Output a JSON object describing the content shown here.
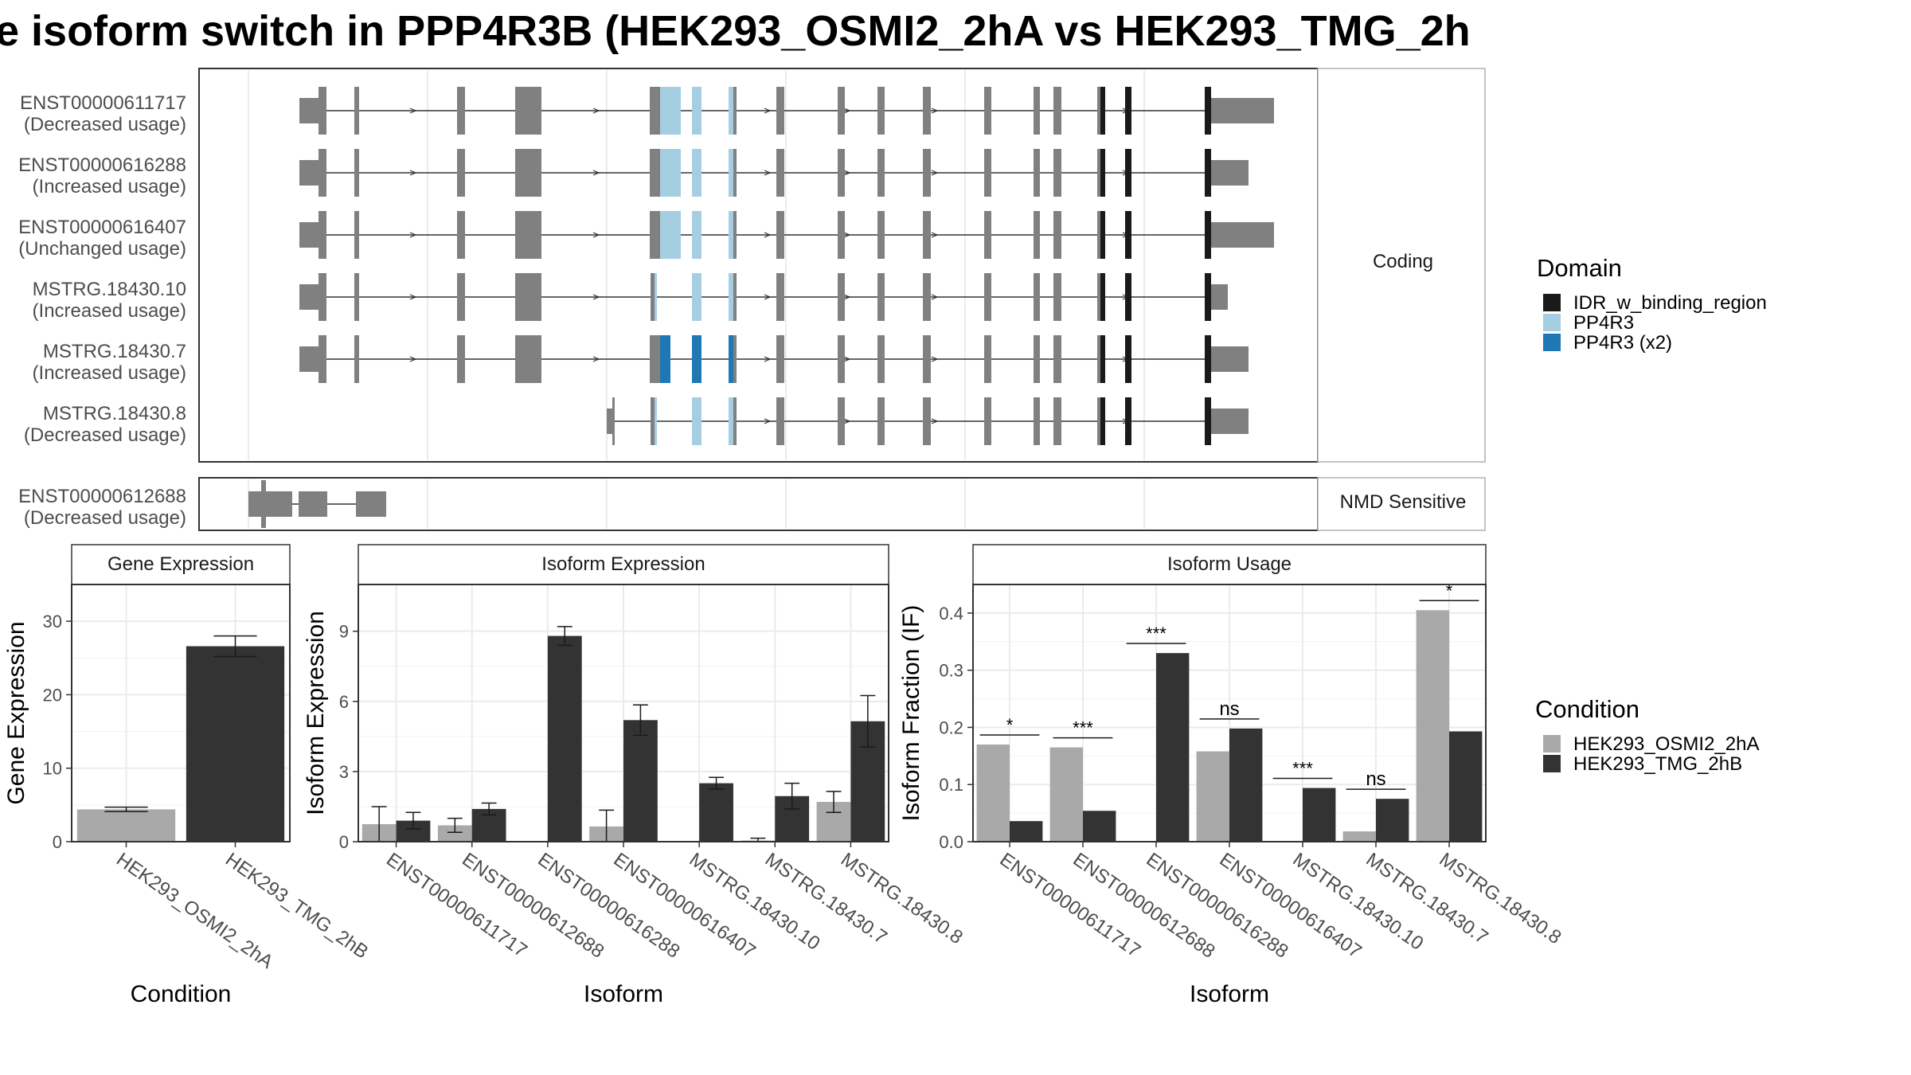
{
  "title": "e isoform switch in PPP4R3B (HEK293_OSMI2_2hA vs HEK293_TMG_2h",
  "colors": {
    "IDR_w_binding_region": "#1a1a1a",
    "PP4R3": "#a6cee3",
    "PP4R3 (x2)": "#1f78b4",
    "HEK293_OSMI2_2hA": "#a9a9a9",
    "HEK293_TMG_2hB": "#333333",
    "exon": "#808080"
  },
  "structure": {
    "coding_label": "Coding",
    "nmd_label": "NMD Sensitive",
    "coding_isoforms": [
      {
        "id": "ENST00000611717",
        "usage": "(Decreased usage)",
        "start": 1,
        "utr3_end": 16,
        "pp4r3_first": true,
        "x2": false
      },
      {
        "id": "ENST00000616288",
        "usage": "(Increased usage)",
        "start": 1,
        "utr3_end": 12,
        "pp4r3_first": true,
        "x2": false
      },
      {
        "id": "ENST00000616407",
        "usage": "(Unchanged usage)",
        "start": 1,
        "utr3_end": 16,
        "pp4r3_first": true,
        "x2": false
      },
      {
        "id": "MSTRG.18430.10",
        "usage": "(Increased usage)",
        "start": 1,
        "utr3_end": 4,
        "pp4r3_first": false,
        "x2": false
      },
      {
        "id": "MSTRG.18430.7",
        "usage": "(Increased usage)",
        "start": 1,
        "utr3_end": 12,
        "pp4r3_first": true,
        "x2": true
      },
      {
        "id": "MSTRG.18430.8",
        "usage": "(Decreased usage)",
        "start": 8,
        "utr3_end": 12,
        "pp4r3_first": false,
        "x2": false
      }
    ],
    "nmd_isoforms": [
      {
        "id": "ENST00000612688",
        "usage": "(Decreased usage)"
      }
    ]
  },
  "legend_domain": {
    "title": "Domain",
    "items": [
      "IDR_w_binding_region",
      "PP4R3",
      "PP4R3 (x2)"
    ]
  },
  "legend_condition": {
    "title": "Condition",
    "items": [
      "HEK293_OSMI2_2hA",
      "HEK293_TMG_2hB"
    ]
  },
  "chart_data": [
    {
      "type": "bar",
      "title": "Gene Expression",
      "xlabel": "Condition",
      "ylabel": "Gene Expression",
      "categories": [
        "HEK293_OSMI2_2hA",
        "HEK293_TMG_2hB"
      ],
      "values": [
        4.4,
        26.6
      ],
      "errors": [
        0.3,
        1.4
      ],
      "ylim": [
        0,
        35
      ],
      "yticks": [
        0,
        10,
        20,
        30
      ]
    },
    {
      "type": "bar",
      "title": "Isoform Expression",
      "xlabel": "Isoform",
      "ylabel": "Isoform Expression",
      "categories": [
        "ENST00000611717",
        "ENST00000612688",
        "ENST00000616288",
        "ENST00000616407",
        "MSTRG.18430.10",
        "MSTRG.18430.7",
        "MSTRG.18430.8"
      ],
      "series": [
        {
          "name": "HEK293_OSMI2_2hA",
          "values": [
            0.75,
            0.7,
            0,
            0.65,
            0,
            0.05,
            1.7
          ],
          "errors": [
            0.75,
            0.3,
            0,
            0.7,
            0,
            0.1,
            0.45
          ]
        },
        {
          "name": "HEK293_TMG_2hB",
          "values": [
            0.9,
            1.4,
            8.8,
            5.2,
            2.5,
            1.95,
            5.15
          ],
          "errors": [
            0.35,
            0.25,
            0.4,
            0.65,
            0.25,
            0.55,
            1.1
          ]
        }
      ],
      "ylim": [
        0,
        11
      ],
      "yticks": [
        0,
        3,
        6,
        9
      ]
    },
    {
      "type": "bar",
      "title": "Isoform Usage",
      "xlabel": "Isoform",
      "ylabel": "Isoform Fraction (IF)",
      "categories": [
        "ENST00000611717",
        "ENST00000612688",
        "ENST00000616288",
        "ENST00000616407",
        "MSTRG.18430.10",
        "MSTRG.18430.7",
        "MSTRG.18430.8"
      ],
      "series": [
        {
          "name": "HEK293_OSMI2_2hA",
          "values": [
            0.17,
            0.165,
            0,
            0.158,
            0,
            0.018,
            0.405
          ]
        },
        {
          "name": "HEK293_TMG_2hB",
          "values": [
            0.036,
            0.054,
            0.33,
            0.198,
            0.094,
            0.075,
            0.193
          ]
        }
      ],
      "significance": [
        "*",
        "***",
        "***",
        "ns",
        "***",
        "ns",
        "*"
      ],
      "ylim": [
        0,
        0.45
      ],
      "yticks": [
        0,
        0.1,
        0.2,
        0.3,
        0.4
      ],
      "ytick_labels": [
        "0.0",
        "0.1",
        "0.2",
        "0.3",
        "0.4"
      ]
    }
  ]
}
